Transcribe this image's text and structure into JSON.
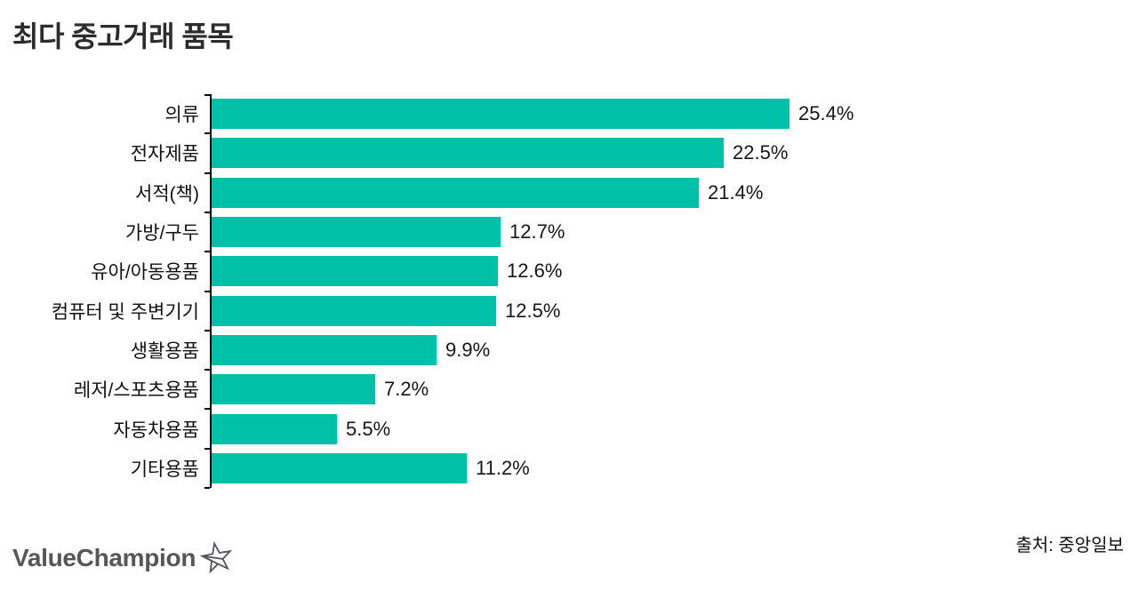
{
  "chart_data": {
    "type": "bar",
    "orientation": "horizontal",
    "title": "최다 중고거래 품목",
    "categories": [
      "의류",
      "전자제품",
      "서적(책)",
      "가방/구두",
      "유아/아동용품",
      "컴퓨터 및 주변기기",
      "생활용품",
      "레저/스포츠용품",
      "자동차용품",
      "기타용품"
    ],
    "values": [
      25.4,
      22.5,
      21.4,
      12.7,
      12.6,
      12.5,
      9.9,
      7.2,
      5.5,
      11.2
    ],
    "value_labels": [
      "25.4%",
      "22.5%",
      "21.4%",
      "12.7%",
      "12.6%",
      "12.5%",
      "9.9%",
      "7.2%",
      "5.5%",
      "11.2%"
    ],
    "xlabel": "",
    "ylabel": "",
    "xlim": [
      0,
      25.4
    ],
    "grid": false,
    "legend": false,
    "value_label_position": "outside-end",
    "bar_color": "#00c1a8",
    "axis_color": "#000000"
  },
  "footer": {
    "logo_text": "ValueChampion",
    "logo_icon": "star-icon",
    "source_label": "출처: 중앙일보"
  },
  "colors": {
    "bar": "#00c1a8",
    "title_text": "#2c2c2c",
    "label_text": "#111111",
    "logo_gray": "#55565a",
    "background": "#ffffff"
  }
}
